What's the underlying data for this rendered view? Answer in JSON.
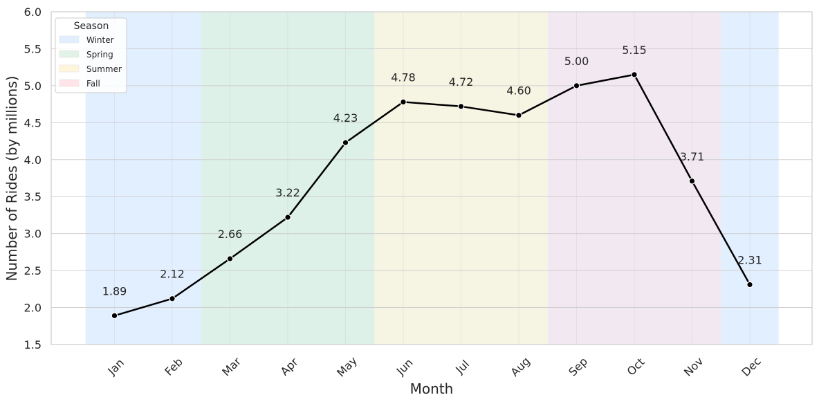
{
  "chart_data": {
    "type": "line",
    "title": "",
    "xlabel": "Month",
    "ylabel": "Number of Rides (by millions)",
    "categories": [
      "Jan",
      "Feb",
      "Mar",
      "Apr",
      "May",
      "Jun",
      "Jul",
      "Aug",
      "Sep",
      "Oct",
      "Nov",
      "Dec"
    ],
    "values": [
      1.89,
      2.12,
      2.66,
      3.22,
      4.23,
      4.78,
      4.72,
      4.6,
      5.0,
      5.15,
      3.71,
      2.31
    ],
    "data_labels": [
      "1.89",
      "2.12",
      "2.66",
      "3.22",
      "4.23",
      "4.78",
      "4.72",
      "4.60",
      "5.00",
      "5.15",
      "3.71",
      "2.31"
    ],
    "ylim": [
      1.5,
      6.0
    ],
    "yticks": [
      "1.5",
      "2.0",
      "2.5",
      "3.0",
      "3.5",
      "4.0",
      "4.5",
      "5.0",
      "5.5",
      "6.0"
    ],
    "grid": true,
    "line_color": "#000000",
    "legend": {
      "title": "Season",
      "placement": "top-left",
      "entries": [
        {
          "label": "Winter",
          "color": "#cfe4ff",
          "swatch_color": "#e1eeff"
        },
        {
          "label": "Spring",
          "color": "#c6e8d9",
          "swatch_color": "#e2f2e6"
        },
        {
          "label": "Summer",
          "color": "#f0eccf",
          "swatch_color": "#fff5db"
        },
        {
          "label": "Fall",
          "color": "#ead9e9",
          "swatch_color": "#ffe4e9"
        }
      ]
    },
    "season_bands": [
      {
        "season": "Winter",
        "from_month": "Jan",
        "to_month": "Feb"
      },
      {
        "season": "Spring",
        "from_month": "Mar",
        "to_month": "May"
      },
      {
        "season": "Summer",
        "from_month": "Jun",
        "to_month": "Aug"
      },
      {
        "season": "Fall",
        "from_month": "Sep",
        "to_month": "Nov"
      },
      {
        "season": "Winter",
        "from_month": "Dec",
        "to_month": "Dec"
      }
    ]
  }
}
